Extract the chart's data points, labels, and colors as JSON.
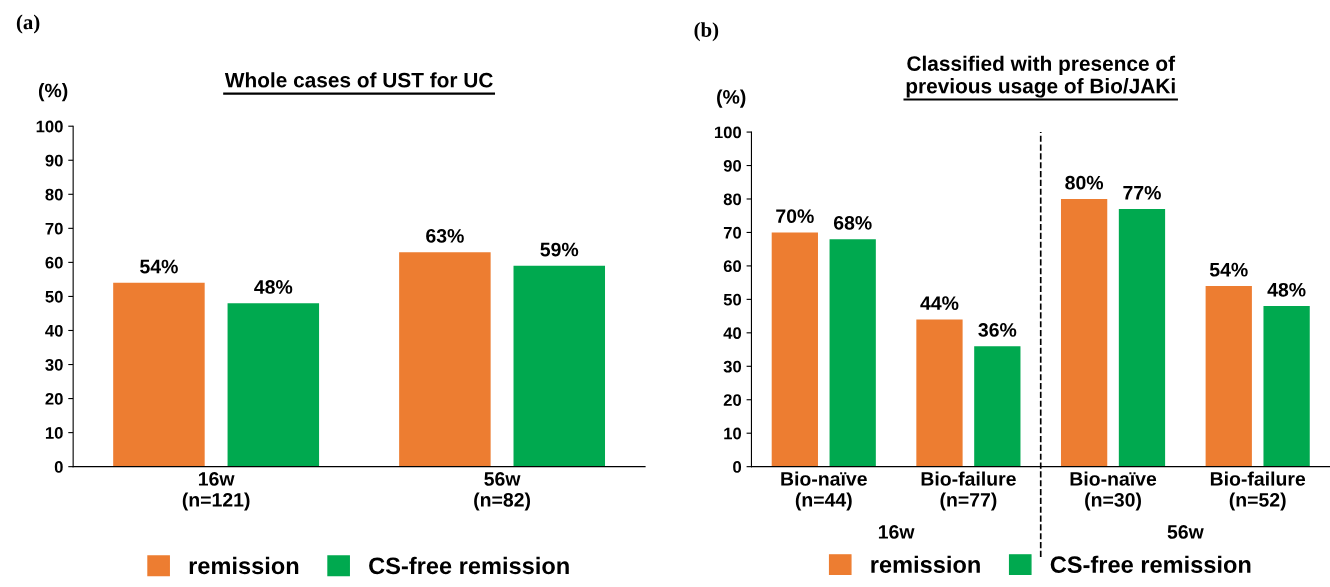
{
  "chart_data": [
    {
      "type": "bar",
      "title": "Whole cases of UST for UC",
      "ylabel": "(%)",
      "annotations": [
        "(a)"
      ],
      "categories": [
        "16w\n(n=121)",
        "56w\n(n=82)"
      ],
      "series": [
        {
          "name": "remission",
          "color": "#ed7d31",
          "values": [
            54,
            63
          ],
          "value_labels": [
            "54%",
            "63%"
          ]
        },
        {
          "name": "CS-free remission",
          "color": "#00a94f",
          "values": [
            48,
            59
          ],
          "value_labels": [
            "48%",
            "59%"
          ]
        }
      ],
      "ylim": [
        0,
        100
      ],
      "yticks": [
        0,
        10,
        20,
        30,
        40,
        50,
        60,
        70,
        80,
        90,
        100
      ],
      "grid": false,
      "legend": "bottom"
    },
    {
      "type": "bar",
      "title": "Classified with presence of\nprevious usage of Bio/JAKi",
      "ylabel": "(%)",
      "annotations": [
        "(b)",
        "16w",
        "56w"
      ],
      "categories": [
        "Bio-naïve\n(n=44)",
        "Bio-failure\n(n=77)",
        "Bio-naïve\n(n=30)",
        "Bio-failure\n(n=52)"
      ],
      "series": [
        {
          "name": "remission",
          "color": "#ed7d31",
          "values": [
            70,
            44,
            80,
            54
          ],
          "value_labels": [
            "70%",
            "44%",
            "80%",
            "54%"
          ]
        },
        {
          "name": "CS-free remission",
          "color": "#00a94f",
          "values": [
            68,
            36,
            77,
            48
          ],
          "value_labels": [
            "68%",
            "36%",
            "77%",
            "48%"
          ]
        }
      ],
      "ylim": [
        0,
        100
      ],
      "yticks": [
        0,
        10,
        20,
        30,
        40,
        50,
        60,
        70,
        80,
        90,
        100
      ],
      "grid": false,
      "legend": "bottom"
    }
  ]
}
